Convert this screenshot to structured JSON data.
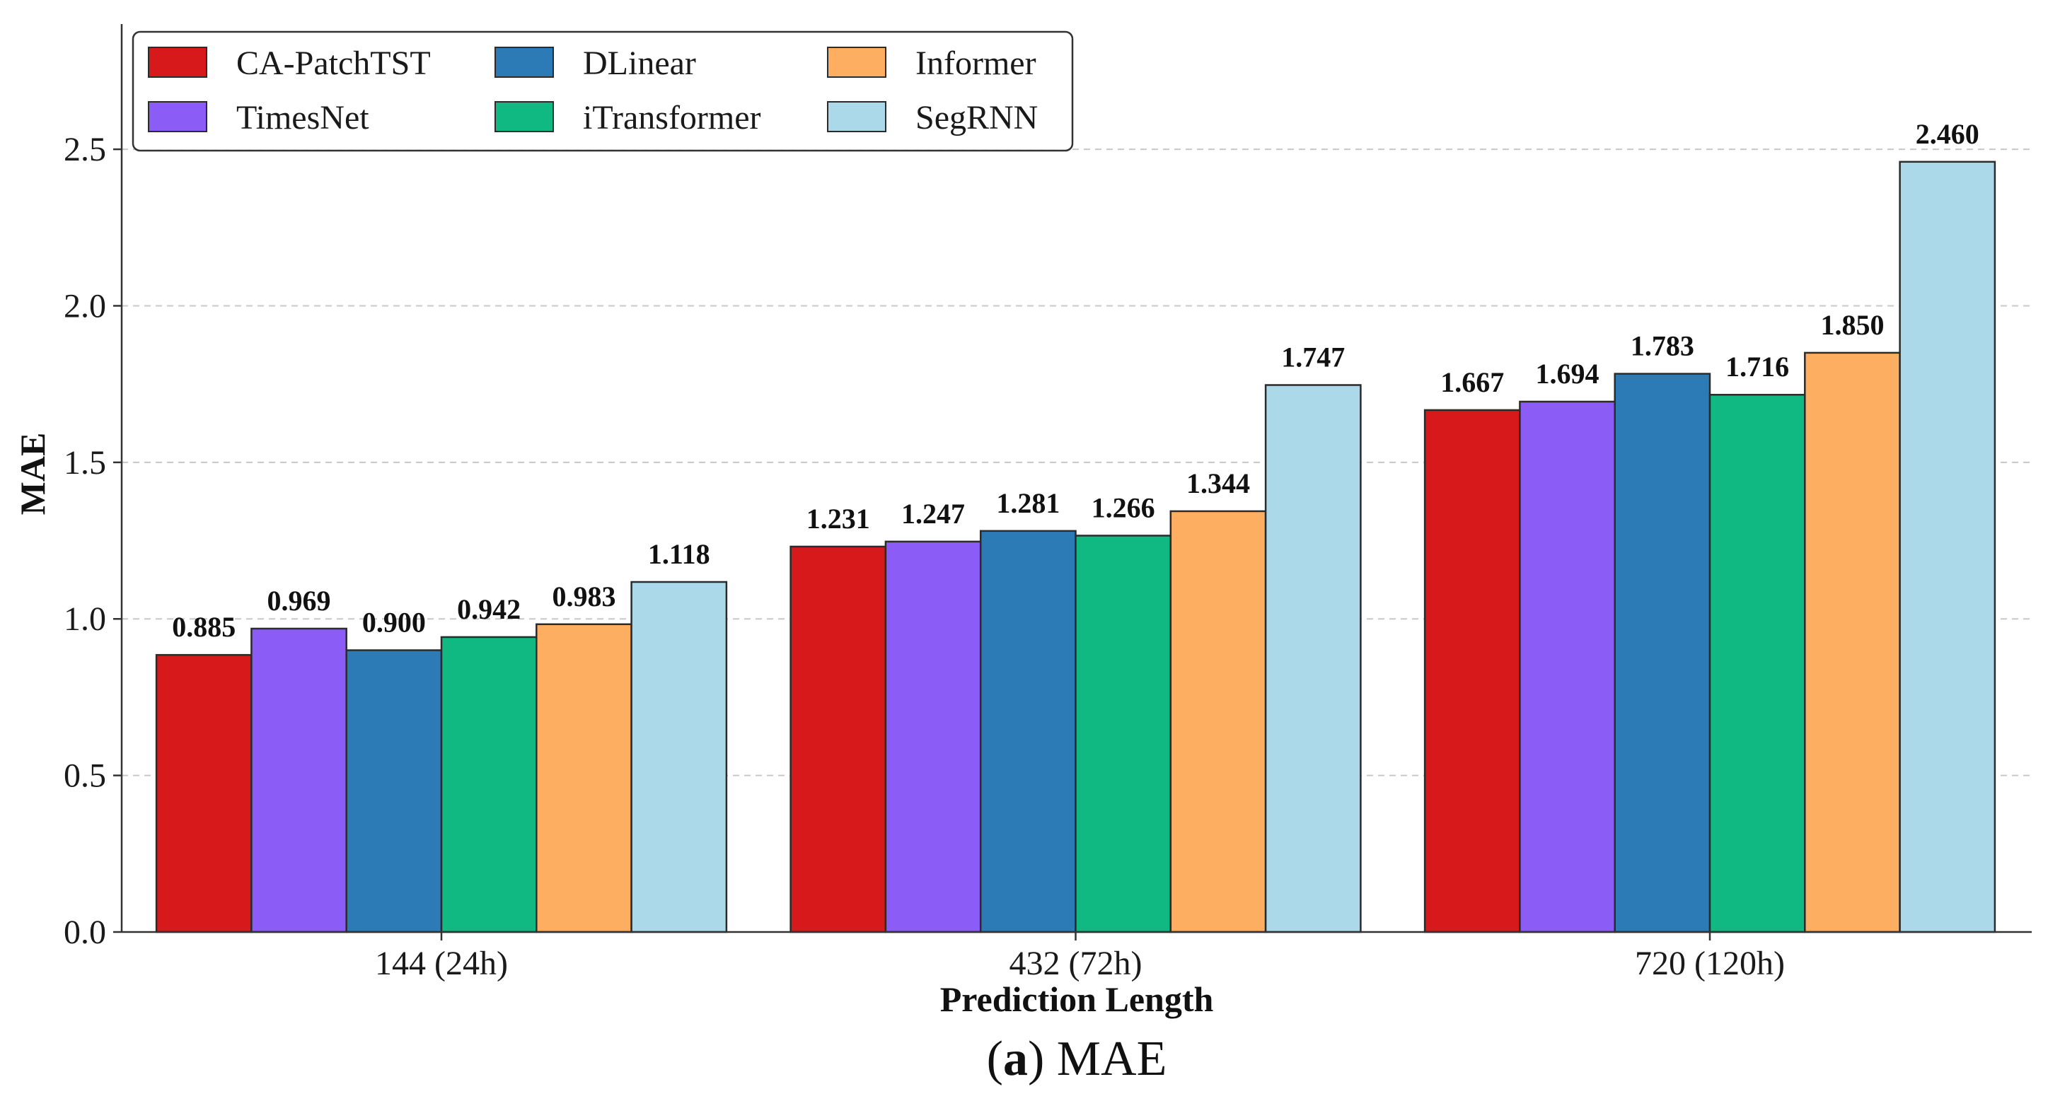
{
  "chart_data": {
    "type": "bar",
    "title": "",
    "xlabel": "Prediction Length",
    "ylabel": "MAE",
    "ylim": [
      0,
      2.9
    ],
    "yticks": [
      0.0,
      0.5,
      1.0,
      1.5,
      2.0,
      2.5
    ],
    "ytick_labels": [
      "0.0",
      "0.5",
      "1.0",
      "1.5",
      "2.0",
      "2.5"
    ],
    "grid": "horizontal dashed",
    "legend_position": "top-left",
    "categories": [
      "144 (24h)",
      "432 (72h)",
      "720 (120h)"
    ],
    "series": [
      {
        "name": "CA-PatchTST",
        "color": "#D7191C",
        "values": [
          0.885,
          1.231,
          1.667
        ],
        "labels": [
          "0.885",
          "1.231",
          "1.667"
        ]
      },
      {
        "name": "TimesNet",
        "color": "#8B5CF6",
        "values": [
          0.969,
          1.247,
          1.694
        ],
        "labels": [
          "0.969",
          "1.247",
          "1.694"
        ]
      },
      {
        "name": "DLinear",
        "color": "#2C7BB6",
        "values": [
          0.9,
          1.281,
          1.783
        ],
        "labels": [
          "0.900",
          "1.281",
          "1.783"
        ]
      },
      {
        "name": "iTransformer",
        "color": "#10B981",
        "values": [
          0.942,
          1.266,
          1.716
        ],
        "labels": [
          "0.942",
          "1.266",
          "1.716"
        ]
      },
      {
        "name": "Informer",
        "color": "#FDAE61",
        "values": [
          0.983,
          1.344,
          1.85
        ],
        "labels": [
          "0.983",
          "1.344",
          "1.850"
        ]
      },
      {
        "name": "SegRNN",
        "color": "#ABD9E9",
        "values": [
          1.118,
          1.747,
          2.46
        ],
        "labels": [
          "1.118",
          "1.747",
          "2.460"
        ]
      }
    ]
  },
  "caption": {
    "letter": "a",
    "text": " MAE"
  }
}
